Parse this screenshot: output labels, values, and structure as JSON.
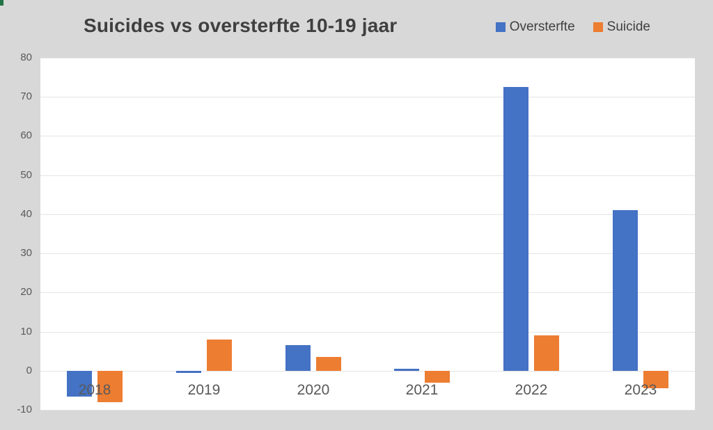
{
  "chart_data": {
    "type": "bar",
    "title": "Suicides vs oversterfte 10-19 jaar",
    "categories": [
      "2018",
      "2019",
      "2020",
      "2021",
      "2022",
      "2023"
    ],
    "series": [
      {
        "name": "Oversterfte",
        "color": "#4472C4",
        "values": [
          -6.5,
          -0.5,
          6.5,
          0.5,
          72.5,
          41
        ]
      },
      {
        "name": "Suicide",
        "color": "#ED7D31",
        "values": [
          -8,
          8,
          3.5,
          -3,
          9,
          -4.5
        ]
      }
    ],
    "xlabel": "",
    "ylabel": "",
    "ylim": [
      -10,
      80
    ],
    "yticks": [
      80,
      70,
      60,
      50,
      40,
      30,
      20,
      10,
      0,
      -10
    ],
    "grid": true,
    "legend_position": "top-right"
  },
  "colors": {
    "background": "#d8d8d8",
    "plot_background": "#ffffff",
    "gridline": "#e4e4e4",
    "title_text": "#3f3f3f",
    "axis_text": "#595959",
    "legend_text": "#404040",
    "corner_accent_green": "#217346"
  }
}
